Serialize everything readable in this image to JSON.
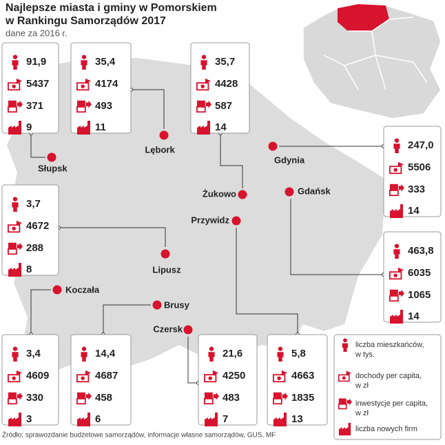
{
  "title": [
    "Najlepsze miasta i gminy w Pomorskiem",
    "w Rankingu Samorządów 2017"
  ],
  "subtitle": "dane za 2016 r.",
  "source": "Źródło: sprawozdanie budżetowe samorządów, informacje własne samorządów, GUS, MF",
  "legend": [
    {
      "label": [
        "liczba mieszkańców,",
        "w tys."
      ]
    },
    {
      "label": [
        "dochody per capita,",
        "w zł"
      ]
    },
    {
      "label": [
        "inwestycje per capita,",
        "w zł"
      ]
    },
    {
      "label": [
        "liczba nowych firm"
      ]
    }
  ],
  "cities": [
    {
      "name": "Słupsk",
      "values": [
        "91,9",
        "5437",
        "371",
        "9"
      ]
    },
    {
      "name": "Lębork",
      "values": [
        "35,4",
        "4174",
        "493",
        "11"
      ]
    },
    {
      "name": "Żukowo",
      "values": [
        "35,7",
        "4428",
        "587",
        "14"
      ]
    },
    {
      "name": "Gdynia",
      "values": [
        "247,0",
        "5506",
        "333",
        "14"
      ]
    },
    {
      "name": "Gdańsk",
      "values": [
        "463,8",
        "6035",
        "1065",
        "14"
      ]
    },
    {
      "name": "Lipusz",
      "values": [
        "3,7",
        "4672",
        "288",
        "8"
      ]
    },
    {
      "name": "Koczała",
      "values": [
        "3,4",
        "4609",
        "330",
        "3"
      ]
    },
    {
      "name": "Brusy",
      "values": [
        "14,4",
        "4687",
        "458",
        "6"
      ]
    },
    {
      "name": "Czersk",
      "values": [
        "21,6",
        "4250",
        "483",
        "7"
      ]
    },
    {
      "name": "Przywidz",
      "values": [
        "5,8",
        "4663",
        "1835",
        "13"
      ]
    }
  ]
}
